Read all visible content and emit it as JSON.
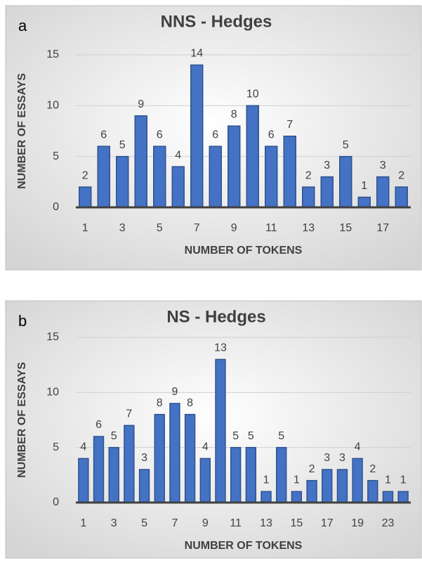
{
  "chart_data": [
    {
      "type": "bar",
      "panel": "a",
      "title": "NNS - Hedges",
      "xlabel": "NUMBER OF TOKENS",
      "ylabel": "NUMBER OF ESSAYS",
      "categories": [
        1,
        null,
        3,
        null,
        5,
        null,
        7,
        null,
        9,
        null,
        11,
        null,
        13,
        null,
        15,
        null,
        17,
        null
      ],
      "values": [
        2,
        6,
        5,
        9,
        6,
        4,
        14,
        6,
        8,
        10,
        6,
        7,
        2,
        3,
        5,
        1,
        3,
        2
      ],
      "color": "#4472c4",
      "ylim": [
        0,
        15
      ],
      "yticks": [
        0,
        5,
        10,
        15
      ],
      "grid": true
    },
    {
      "type": "bar",
      "panel": "b",
      "title": "NS - Hedges",
      "xlabel": "NUMBER OF TOKENS",
      "ylabel": "NUMBER OF ESSAYS",
      "categories": [
        1,
        null,
        3,
        null,
        5,
        null,
        7,
        null,
        9,
        null,
        11,
        null,
        13,
        null,
        15,
        null,
        17,
        null,
        19,
        null,
        23,
        null
      ],
      "values": [
        4,
        6,
        5,
        7,
        3,
        8,
        9,
        8,
        4,
        13,
        5,
        5,
        1,
        5,
        1,
        2,
        3,
        3,
        4,
        2,
        1,
        1
      ],
      "color": "#4472c4",
      "ylim": [
        0,
        15
      ],
      "yticks": [
        0,
        5,
        10,
        15
      ],
      "grid": true
    }
  ]
}
